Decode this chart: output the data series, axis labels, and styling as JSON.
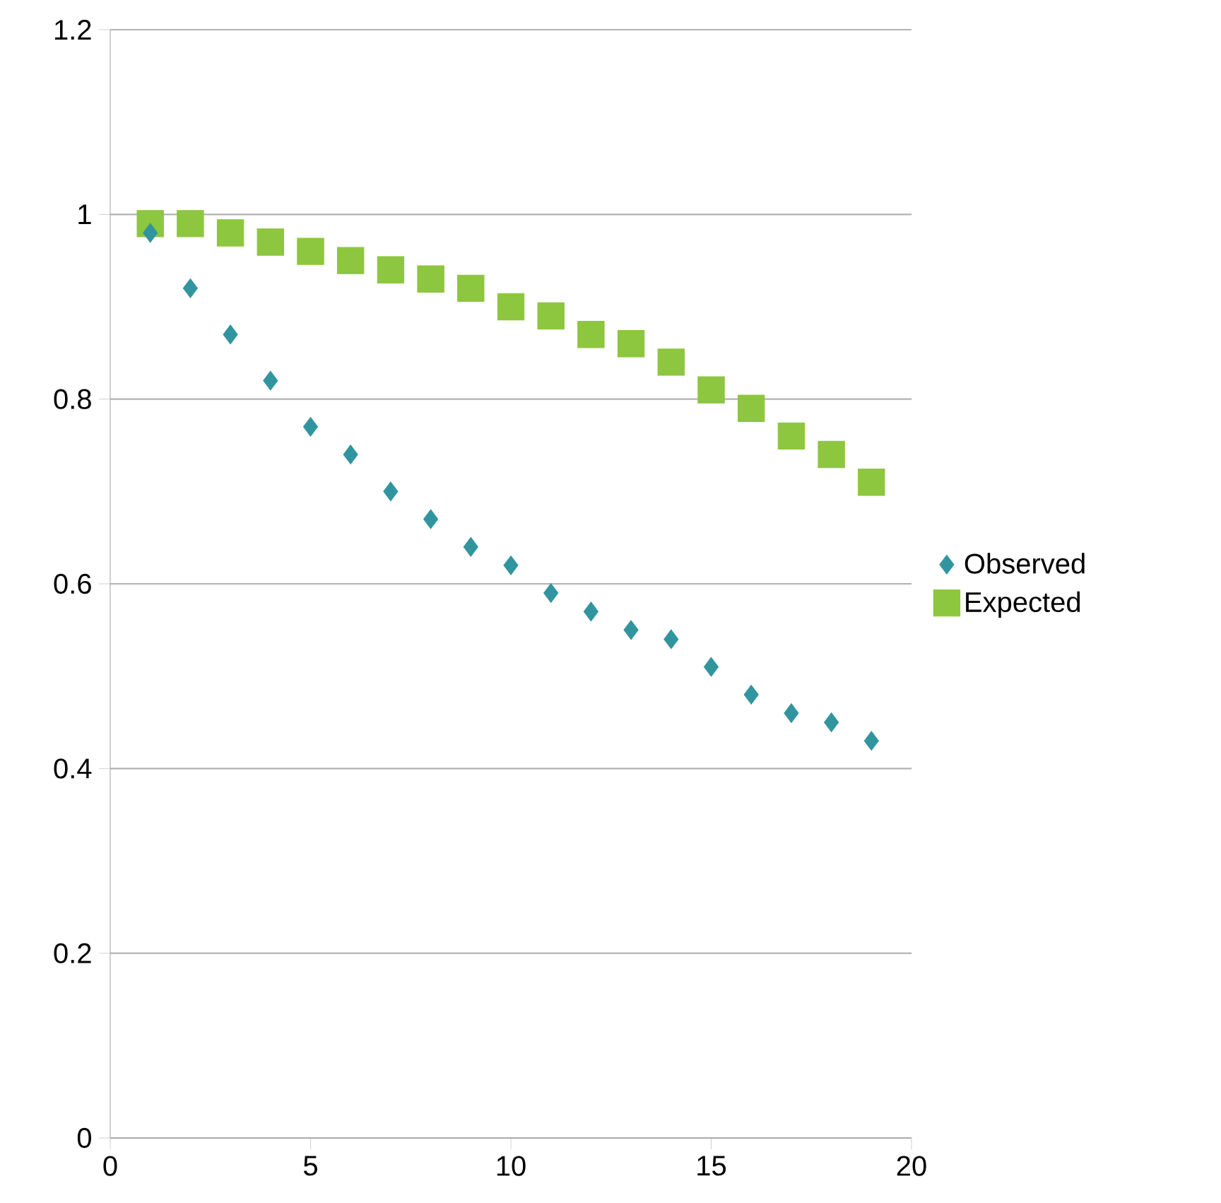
{
  "chart_data": {
    "type": "scatter",
    "x": [
      1,
      2,
      3,
      4,
      5,
      6,
      7,
      8,
      9,
      10,
      11,
      12,
      13,
      14,
      15,
      16,
      17,
      18,
      19
    ],
    "series": [
      {
        "name": "Observed",
        "color": "#31959f",
        "marker": "diamond",
        "values": [
          0.98,
          0.92,
          0.87,
          0.82,
          0.77,
          0.74,
          0.7,
          0.67,
          0.64,
          0.62,
          0.59,
          0.57,
          0.55,
          0.54,
          0.51,
          0.48,
          0.46,
          0.45,
          0.43
        ]
      },
      {
        "name": "Expected",
        "color": "#8dc63f",
        "marker": "square",
        "values": [
          0.99,
          0.99,
          0.98,
          0.97,
          0.96,
          0.95,
          0.94,
          0.93,
          0.92,
          0.9,
          0.89,
          0.87,
          0.86,
          0.84,
          0.81,
          0.79,
          0.76,
          0.74,
          0.71
        ]
      }
    ],
    "xlim": [
      0,
      20
    ],
    "xticks": [
      0,
      5,
      10,
      15,
      20
    ],
    "ylim": [
      0,
      1.2
    ],
    "yticks": [
      0,
      0.2,
      0.4,
      0.6,
      0.8,
      1,
      1.2
    ],
    "grid": "y",
    "legend": "right"
  }
}
